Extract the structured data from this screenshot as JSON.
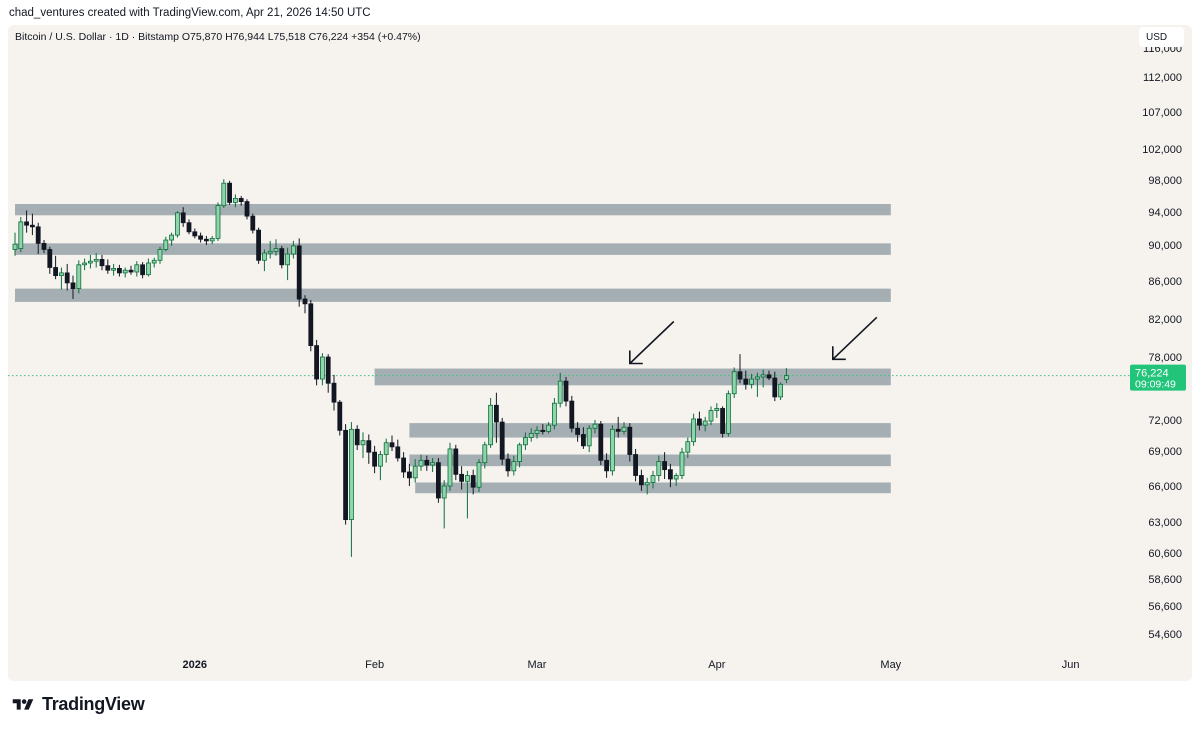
{
  "header": {
    "text": "chad_ventures created with TradingView.com, Apr 21, 2026 14:50 UTC"
  },
  "symbol_info": "Bitcoin / U.S. Dollar · 1D · Bitstamp  O75,870  H76,944  L75,518  C76,224  +354 (+0.47%)",
  "currency_button": "USD",
  "brand": {
    "name": "TradingView",
    "icon": "tradingview-logo-icon"
  },
  "colors": {
    "background": "#f6f3ef",
    "up_fill": "#8fd4aa",
    "up_stroke": "#0b6e3b",
    "down_fill": "#131722",
    "down_stroke": "#131722",
    "zone": "#a5afb3",
    "price_label": "#22c47a",
    "current_line": "#35c27c",
    "axis_text": "#131722"
  },
  "chart_data": {
    "type": "candlestick",
    "title": "Bitcoin / U.S. Dollar · 1D · Bitstamp",
    "symbol": "BTCUSD",
    "interval": "1D",
    "exchange": "Bitstamp",
    "ohlc_last": {
      "open": 75870,
      "high": 76944,
      "low": 75518,
      "close": 76224,
      "change": "+354 (+0.47%)"
    },
    "y_axis_labels": [
      54600,
      56600,
      58600,
      60600,
      63000,
      66000,
      69000,
      72000,
      76224,
      78000,
      82000,
      86000,
      90000,
      94000,
      98000,
      102000,
      107000,
      112000,
      116000
    ],
    "y_tick_labels": [
      "54,600",
      "56,600",
      "58,600",
      "60,600",
      "63,000",
      "66,000",
      "69,000",
      "72,000",
      "78,000",
      "82,000",
      "86,000",
      "90,000",
      "94,000",
      "98,000",
      "102,000",
      "107,000",
      "112,000",
      "116,000"
    ],
    "x_tick_labels": [
      {
        "label": "2026",
        "date": "2026-01-01",
        "bold": true
      },
      {
        "label": "Feb",
        "date": "2026-02-01",
        "bold": false
      },
      {
        "label": "Mar",
        "date": "2026-03-01",
        "bold": false
      },
      {
        "label": "Apr",
        "date": "2026-04-01",
        "bold": false
      },
      {
        "label": "May",
        "date": "2026-05-01",
        "bold": false
      },
      {
        "label": "Jun",
        "date": "2026-06-01",
        "bold": false
      }
    ],
    "current_price": {
      "value": 76224,
      "label": "76,224",
      "countdown": "09:09:49"
    },
    "zones": [
      {
        "low": 93600,
        "high": 95000,
        "from": "2025-12-01",
        "to": "2026-05-01"
      },
      {
        "low": 88900,
        "high": 90200,
        "from": "2025-12-01",
        "to": "2026-05-01"
      },
      {
        "low": 83800,
        "high": 85200,
        "from": "2025-12-01",
        "to": "2026-05-01"
      },
      {
        "low": 75300,
        "high": 76900,
        "from": "2026-02-01",
        "to": "2026-05-01"
      },
      {
        "low": 70300,
        "high": 71700,
        "from": "2026-02-07",
        "to": "2026-05-01"
      },
      {
        "low": 67700,
        "high": 68700,
        "from": "2026-02-07",
        "to": "2026-05-01"
      },
      {
        "low": 65400,
        "high": 66300,
        "from": "2026-02-08",
        "to": "2026-05-01"
      }
    ],
    "arrows": [
      {
        "label": "",
        "target_date": "2026-03-17",
        "target_price": 77000
      },
      {
        "label": "",
        "target_date": "2026-04-21",
        "target_price": 77400
      }
    ],
    "candles": [
      {
        "d": "2025-12-01",
        "o": 89500,
        "h": 91500,
        "l": 88800,
        "c": 90100
      },
      {
        "d": "2025-12-02",
        "o": 89600,
        "h": 93400,
        "l": 89200,
        "c": 92800
      },
      {
        "d": "2025-12-03",
        "o": 92800,
        "h": 94200,
        "l": 91500,
        "c": 92400
      },
      {
        "d": "2025-12-04",
        "o": 92400,
        "h": 93800,
        "l": 91200,
        "c": 92200
      },
      {
        "d": "2025-12-05",
        "o": 92200,
        "h": 92700,
        "l": 89000,
        "c": 90200
      },
      {
        "d": "2025-12-06",
        "o": 90200,
        "h": 90600,
        "l": 89100,
        "c": 89500
      },
      {
        "d": "2025-12-07",
        "o": 89500,
        "h": 89800,
        "l": 86800,
        "c": 87500
      },
      {
        "d": "2025-12-08",
        "o": 87500,
        "h": 88800,
        "l": 86200,
        "c": 86600
      },
      {
        "d": "2025-12-09",
        "o": 86600,
        "h": 87500,
        "l": 85100,
        "c": 86900
      },
      {
        "d": "2025-12-10",
        "o": 86900,
        "h": 87900,
        "l": 85000,
        "c": 85800
      },
      {
        "d": "2025-12-11",
        "o": 85800,
        "h": 86600,
        "l": 84100,
        "c": 85200
      },
      {
        "d": "2025-12-12",
        "o": 85200,
        "h": 88300,
        "l": 84700,
        "c": 87800
      },
      {
        "d": "2025-12-13",
        "o": 87800,
        "h": 88500,
        "l": 87200,
        "c": 88000
      },
      {
        "d": "2025-12-14",
        "o": 88000,
        "h": 88900,
        "l": 87400,
        "c": 88200
      },
      {
        "d": "2025-12-15",
        "o": 88200,
        "h": 89100,
        "l": 87500,
        "c": 88400
      },
      {
        "d": "2025-12-16",
        "o": 88400,
        "h": 88900,
        "l": 87200,
        "c": 87700
      },
      {
        "d": "2025-12-17",
        "o": 87700,
        "h": 88400,
        "l": 86800,
        "c": 87200
      },
      {
        "d": "2025-12-18",
        "o": 87200,
        "h": 87900,
        "l": 86600,
        "c": 87400
      },
      {
        "d": "2025-12-19",
        "o": 87400,
        "h": 87800,
        "l": 86500,
        "c": 86900
      },
      {
        "d": "2025-12-20",
        "o": 86900,
        "h": 87500,
        "l": 86400,
        "c": 87200
      },
      {
        "d": "2025-12-21",
        "o": 87200,
        "h": 87700,
        "l": 86700,
        "c": 87000
      },
      {
        "d": "2025-12-22",
        "o": 87000,
        "h": 88200,
        "l": 86500,
        "c": 87800
      },
      {
        "d": "2025-12-23",
        "o": 87800,
        "h": 88100,
        "l": 86300,
        "c": 86700
      },
      {
        "d": "2025-12-24",
        "o": 86700,
        "h": 88500,
        "l": 86500,
        "c": 88000
      },
      {
        "d": "2025-12-25",
        "o": 88000,
        "h": 88600,
        "l": 87500,
        "c": 88300
      },
      {
        "d": "2025-12-26",
        "o": 88300,
        "h": 89800,
        "l": 87900,
        "c": 89500
      },
      {
        "d": "2025-12-27",
        "o": 89500,
        "h": 91000,
        "l": 89300,
        "c": 90600
      },
      {
        "d": "2025-12-28",
        "o": 90600,
        "h": 91500,
        "l": 89900,
        "c": 91200
      },
      {
        "d": "2025-12-29",
        "o": 91200,
        "h": 94100,
        "l": 90900,
        "c": 93900
      },
      {
        "d": "2025-12-30",
        "o": 93900,
        "h": 94600,
        "l": 92200,
        "c": 92700
      },
      {
        "d": "2025-12-31",
        "o": 92700,
        "h": 93100,
        "l": 91300,
        "c": 91600
      },
      {
        "d": "2026-01-01",
        "o": 91600,
        "h": 92000,
        "l": 90800,
        "c": 91100
      },
      {
        "d": "2026-01-02",
        "o": 91100,
        "h": 91500,
        "l": 90300,
        "c": 90700
      },
      {
        "d": "2026-01-03",
        "o": 90700,
        "h": 91100,
        "l": 90000,
        "c": 90500
      },
      {
        "d": "2026-01-04",
        "o": 90500,
        "h": 91100,
        "l": 90100,
        "c": 90800
      },
      {
        "d": "2026-01-05",
        "o": 90800,
        "h": 95200,
        "l": 90500,
        "c": 94800
      },
      {
        "d": "2026-01-06",
        "o": 94800,
        "h": 98100,
        "l": 94500,
        "c": 97600
      },
      {
        "d": "2026-01-07",
        "o": 97600,
        "h": 97900,
        "l": 94900,
        "c": 95200
      },
      {
        "d": "2026-01-08",
        "o": 95200,
        "h": 96200,
        "l": 94600,
        "c": 95700
      },
      {
        "d": "2026-01-09",
        "o": 95700,
        "h": 96000,
        "l": 94800,
        "c": 95300
      },
      {
        "d": "2026-01-10",
        "o": 95300,
        "h": 95600,
        "l": 93100,
        "c": 93500
      },
      {
        "d": "2026-01-11",
        "o": 93500,
        "h": 93800,
        "l": 91400,
        "c": 91800
      },
      {
        "d": "2026-01-12",
        "o": 91800,
        "h": 92100,
        "l": 87900,
        "c": 88300
      },
      {
        "d": "2026-01-13",
        "o": 88300,
        "h": 89500,
        "l": 87100,
        "c": 89100
      },
      {
        "d": "2026-01-14",
        "o": 89100,
        "h": 90500,
        "l": 88500,
        "c": 89300
      },
      {
        "d": "2026-01-15",
        "o": 89300,
        "h": 90700,
        "l": 88800,
        "c": 89600
      },
      {
        "d": "2026-01-16",
        "o": 89600,
        "h": 89900,
        "l": 87400,
        "c": 87800
      },
      {
        "d": "2026-01-17",
        "o": 87800,
        "h": 89700,
        "l": 86100,
        "c": 89000
      },
      {
        "d": "2026-01-18",
        "o": 89000,
        "h": 90500,
        "l": 88500,
        "c": 89900
      },
      {
        "d": "2026-01-19",
        "o": 89900,
        "h": 90800,
        "l": 83300,
        "c": 84100
      },
      {
        "d": "2026-01-20",
        "o": 84100,
        "h": 84500,
        "l": 82600,
        "c": 83600
      },
      {
        "d": "2026-01-21",
        "o": 83600,
        "h": 84000,
        "l": 78600,
        "c": 79200
      },
      {
        "d": "2026-01-22",
        "o": 79200,
        "h": 79800,
        "l": 75300,
        "c": 75900
      },
      {
        "d": "2026-01-23",
        "o": 75900,
        "h": 78400,
        "l": 75300,
        "c": 78000
      },
      {
        "d": "2026-01-24",
        "o": 78000,
        "h": 78300,
        "l": 74600,
        "c": 75500
      },
      {
        "d": "2026-01-25",
        "o": 75500,
        "h": 76300,
        "l": 72900,
        "c": 73700
      },
      {
        "d": "2026-01-26",
        "o": 73700,
        "h": 73900,
        "l": 70500,
        "c": 71000
      },
      {
        "d": "2026-01-27",
        "o": 71000,
        "h": 71600,
        "l": 62800,
        "c": 63200
      },
      {
        "d": "2026-01-28",
        "o": 63200,
        "h": 71800,
        "l": 60300,
        "c": 71100
      },
      {
        "d": "2026-01-29",
        "o": 71100,
        "h": 71500,
        "l": 69100,
        "c": 69600
      },
      {
        "d": "2026-01-30",
        "o": 69600,
        "h": 70800,
        "l": 68400,
        "c": 70000
      },
      {
        "d": "2026-01-31",
        "o": 70000,
        "h": 70600,
        "l": 67900,
        "c": 68900
      },
      {
        "d": "2026-02-01",
        "o": 68900,
        "h": 69500,
        "l": 67100,
        "c": 67700
      },
      {
        "d": "2026-02-02",
        "o": 67700,
        "h": 69000,
        "l": 66500,
        "c": 68700
      },
      {
        "d": "2026-02-03",
        "o": 68700,
        "h": 70200,
        "l": 68000,
        "c": 69800
      },
      {
        "d": "2026-02-04",
        "o": 69800,
        "h": 70500,
        "l": 69000,
        "c": 69400
      },
      {
        "d": "2026-02-05",
        "o": 69400,
        "h": 70100,
        "l": 68100,
        "c": 68400
      },
      {
        "d": "2026-02-06",
        "o": 68400,
        "h": 68900,
        "l": 66700,
        "c": 67200
      },
      {
        "d": "2026-02-07",
        "o": 67200,
        "h": 67900,
        "l": 66000,
        "c": 66700
      },
      {
        "d": "2026-02-08",
        "o": 66700,
        "h": 68300,
        "l": 66300,
        "c": 67700
      },
      {
        "d": "2026-02-09",
        "o": 67700,
        "h": 68700,
        "l": 67300,
        "c": 68200
      },
      {
        "d": "2026-02-10",
        "o": 68200,
        "h": 68600,
        "l": 67300,
        "c": 67800
      },
      {
        "d": "2026-02-11",
        "o": 67800,
        "h": 68400,
        "l": 67200,
        "c": 68000
      },
      {
        "d": "2026-02-12",
        "o": 68000,
        "h": 68400,
        "l": 64600,
        "c": 65000
      },
      {
        "d": "2026-02-13",
        "o": 65000,
        "h": 66500,
        "l": 62500,
        "c": 66000
      },
      {
        "d": "2026-02-14",
        "o": 66000,
        "h": 69800,
        "l": 65600,
        "c": 69200
      },
      {
        "d": "2026-02-15",
        "o": 69200,
        "h": 69600,
        "l": 66500,
        "c": 67000
      },
      {
        "d": "2026-02-16",
        "o": 67000,
        "h": 67700,
        "l": 65700,
        "c": 66400
      },
      {
        "d": "2026-02-17",
        "o": 66400,
        "h": 67300,
        "l": 63300,
        "c": 66900
      },
      {
        "d": "2026-02-18",
        "o": 66900,
        "h": 67400,
        "l": 65300,
        "c": 65900
      },
      {
        "d": "2026-02-19",
        "o": 65900,
        "h": 68300,
        "l": 65500,
        "c": 68000
      },
      {
        "d": "2026-02-20",
        "o": 68000,
        "h": 69900,
        "l": 67500,
        "c": 69600
      },
      {
        "d": "2026-02-21",
        "o": 69600,
        "h": 74100,
        "l": 69300,
        "c": 73400
      },
      {
        "d": "2026-02-22",
        "o": 73400,
        "h": 74600,
        "l": 69800,
        "c": 71800
      },
      {
        "d": "2026-02-23",
        "o": 71800,
        "h": 72200,
        "l": 67800,
        "c": 68300
      },
      {
        "d": "2026-02-24",
        "o": 68300,
        "h": 68800,
        "l": 66800,
        "c": 67300
      },
      {
        "d": "2026-02-25",
        "o": 67300,
        "h": 68600,
        "l": 66900,
        "c": 68100
      },
      {
        "d": "2026-02-26",
        "o": 68100,
        "h": 69800,
        "l": 67600,
        "c": 69600
      },
      {
        "d": "2026-02-27",
        "o": 69600,
        "h": 70800,
        "l": 69100,
        "c": 70300
      },
      {
        "d": "2026-02-28",
        "o": 70300,
        "h": 71200,
        "l": 69900,
        "c": 70700
      },
      {
        "d": "2026-03-01",
        "o": 70700,
        "h": 71400,
        "l": 70200,
        "c": 71000
      },
      {
        "d": "2026-03-02",
        "o": 71000,
        "h": 71600,
        "l": 70600,
        "c": 70900
      },
      {
        "d": "2026-03-03",
        "o": 70900,
        "h": 71800,
        "l": 70700,
        "c": 71500
      },
      {
        "d": "2026-03-04",
        "o": 71500,
        "h": 74100,
        "l": 71100,
        "c": 73600
      },
      {
        "d": "2026-03-05",
        "o": 73600,
        "h": 76500,
        "l": 73200,
        "c": 75700
      },
      {
        "d": "2026-03-06",
        "o": 75700,
        "h": 76100,
        "l": 73300,
        "c": 73800
      },
      {
        "d": "2026-03-07",
        "o": 73800,
        "h": 74300,
        "l": 70800,
        "c": 71200
      },
      {
        "d": "2026-03-08",
        "o": 71200,
        "h": 71800,
        "l": 69900,
        "c": 70600
      },
      {
        "d": "2026-03-09",
        "o": 70600,
        "h": 71300,
        "l": 69200,
        "c": 69500
      },
      {
        "d": "2026-03-10",
        "o": 69500,
        "h": 71500,
        "l": 68900,
        "c": 71200
      },
      {
        "d": "2026-03-11",
        "o": 71200,
        "h": 72000,
        "l": 70700,
        "c": 71600
      },
      {
        "d": "2026-03-12",
        "o": 71600,
        "h": 71900,
        "l": 67800,
        "c": 68200
      },
      {
        "d": "2026-03-13",
        "o": 68200,
        "h": 68800,
        "l": 66700,
        "c": 67300
      },
      {
        "d": "2026-03-14",
        "o": 67300,
        "h": 71500,
        "l": 66900,
        "c": 71100
      },
      {
        "d": "2026-03-15",
        "o": 71100,
        "h": 72300,
        "l": 70300,
        "c": 70900
      },
      {
        "d": "2026-03-16",
        "o": 70900,
        "h": 71800,
        "l": 70600,
        "c": 71300
      },
      {
        "d": "2026-03-17",
        "o": 71300,
        "h": 71700,
        "l": 68100,
        "c": 68700
      },
      {
        "d": "2026-03-18",
        "o": 68700,
        "h": 69200,
        "l": 66400,
        "c": 66900
      },
      {
        "d": "2026-03-19",
        "o": 66900,
        "h": 67400,
        "l": 65600,
        "c": 66100
      },
      {
        "d": "2026-03-20",
        "o": 66100,
        "h": 66700,
        "l": 65300,
        "c": 66300
      },
      {
        "d": "2026-03-21",
        "o": 66300,
        "h": 67300,
        "l": 65800,
        "c": 66900
      },
      {
        "d": "2026-03-22",
        "o": 66900,
        "h": 68600,
        "l": 66400,
        "c": 68100
      },
      {
        "d": "2026-03-23",
        "o": 68100,
        "h": 68900,
        "l": 66600,
        "c": 67400
      },
      {
        "d": "2026-03-24",
        "o": 67400,
        "h": 67900,
        "l": 65900,
        "c": 66600
      },
      {
        "d": "2026-03-25",
        "o": 66600,
        "h": 67100,
        "l": 66000,
        "c": 66900
      },
      {
        "d": "2026-03-26",
        "o": 66900,
        "h": 69300,
        "l": 66600,
        "c": 68900
      },
      {
        "d": "2026-03-27",
        "o": 68900,
        "h": 70300,
        "l": 68400,
        "c": 69900
      },
      {
        "d": "2026-03-28",
        "o": 69900,
        "h": 72600,
        "l": 69500,
        "c": 72100
      },
      {
        "d": "2026-03-29",
        "o": 72100,
        "h": 72800,
        "l": 71000,
        "c": 71500
      },
      {
        "d": "2026-03-30",
        "o": 71500,
        "h": 72300,
        "l": 70900,
        "c": 71900
      },
      {
        "d": "2026-03-31",
        "o": 71900,
        "h": 73300,
        "l": 71500,
        "c": 72900
      },
      {
        "d": "2026-04-01",
        "o": 72900,
        "h": 73600,
        "l": 72200,
        "c": 73100
      },
      {
        "d": "2026-04-02",
        "o": 73100,
        "h": 73300,
        "l": 70300,
        "c": 70700
      },
      {
        "d": "2026-04-03",
        "o": 70700,
        "h": 74800,
        "l": 70400,
        "c": 74500
      },
      {
        "d": "2026-04-04",
        "o": 74500,
        "h": 77000,
        "l": 74100,
        "c": 76600
      },
      {
        "d": "2026-04-05",
        "o": 76600,
        "h": 78300,
        "l": 75500,
        "c": 75900
      },
      {
        "d": "2026-04-06",
        "o": 75900,
        "h": 76700,
        "l": 74900,
        "c": 75400
      },
      {
        "d": "2026-04-07",
        "o": 75400,
        "h": 76400,
        "l": 75000,
        "c": 75900
      },
      {
        "d": "2026-04-08",
        "o": 75900,
        "h": 76500,
        "l": 74200,
        "c": 76100
      },
      {
        "d": "2026-04-09",
        "o": 76100,
        "h": 76800,
        "l": 75100,
        "c": 76300
      },
      {
        "d": "2026-04-10",
        "o": 76300,
        "h": 76700,
        "l": 75800,
        "c": 76000
      },
      {
        "d": "2026-04-11",
        "o": 76000,
        "h": 76600,
        "l": 73800,
        "c": 74200
      },
      {
        "d": "2026-04-12",
        "o": 74200,
        "h": 75600,
        "l": 73900,
        "c": 75400
      },
      {
        "d": "2026-04-13",
        "o": 75870,
        "h": 76944,
        "l": 75518,
        "c": 76224
      }
    ]
  }
}
